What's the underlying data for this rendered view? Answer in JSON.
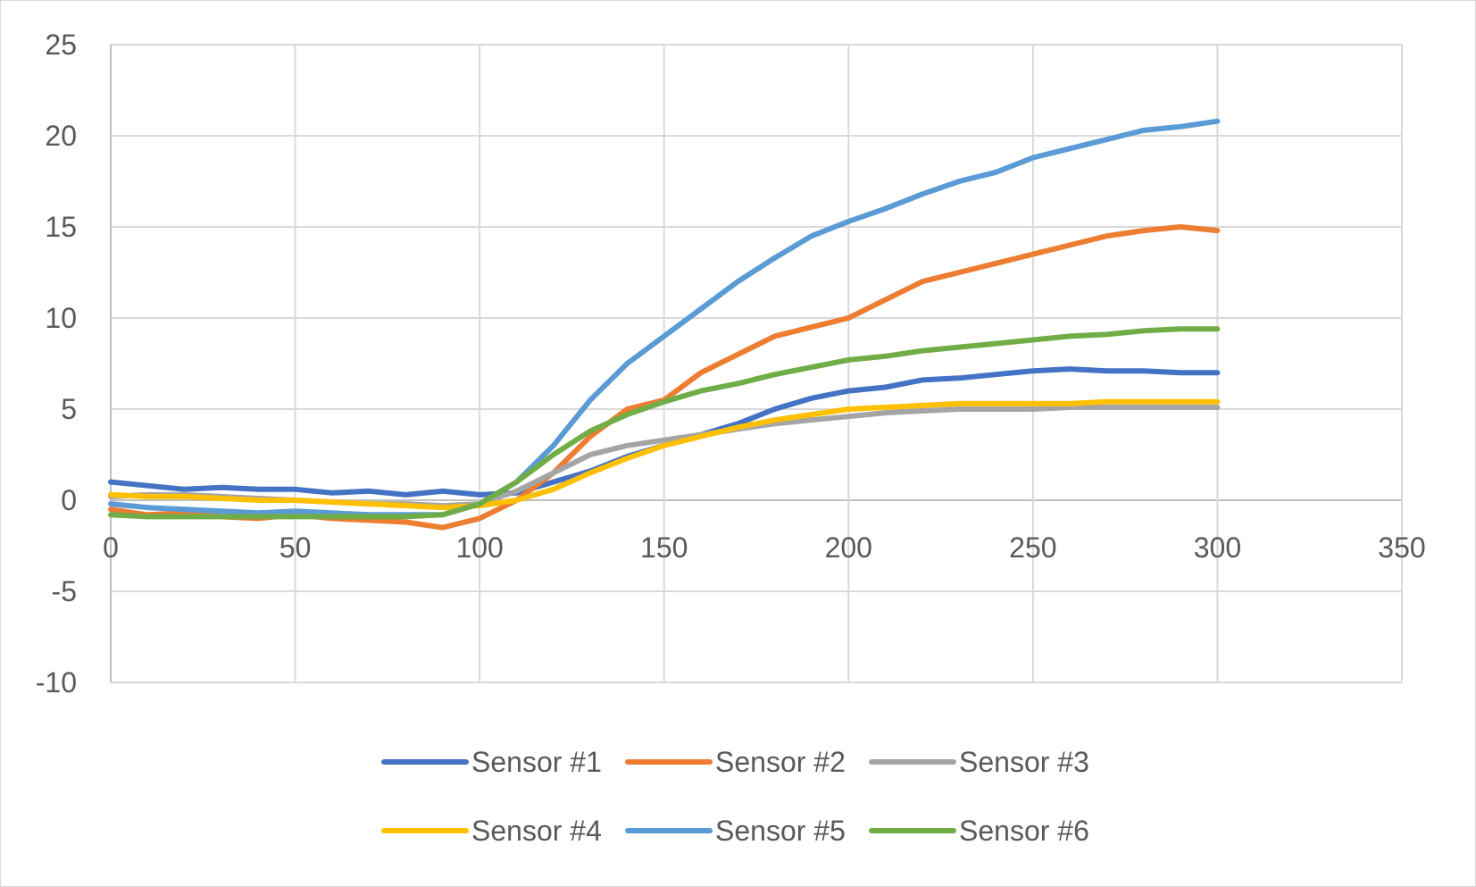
{
  "chart_data": {
    "type": "line",
    "title": "",
    "xlabel": "",
    "ylabel": "",
    "xlim": [
      0,
      350
    ],
    "ylim": [
      -10,
      25
    ],
    "x_ticks": [
      "0",
      "50",
      "100",
      "150",
      "200",
      "250",
      "300",
      "350"
    ],
    "y_ticks": [
      "25",
      "20",
      "15",
      "10",
      "5",
      "0",
      "-5",
      "-10"
    ],
    "grid": true,
    "legend_position": "bottom",
    "x": [
      0,
      10,
      20,
      30,
      40,
      50,
      60,
      70,
      80,
      90,
      100,
      110,
      120,
      130,
      140,
      150,
      160,
      170,
      180,
      190,
      200,
      210,
      220,
      230,
      240,
      250,
      260,
      270,
      280,
      290,
      300
    ],
    "series": [
      {
        "name": "Sensor #1",
        "color": "#4472c4",
        "values": [
          1.0,
          0.8,
          0.6,
          0.7,
          0.6,
          0.6,
          0.4,
          0.5,
          0.3,
          0.5,
          0.3,
          0.4,
          1.0,
          1.6,
          2.4,
          3.0,
          3.6,
          4.2,
          5.0,
          5.6,
          6.0,
          6.2,
          6.6,
          6.7,
          6.9,
          7.1,
          7.2,
          7.1,
          7.1,
          7.0,
          7.0
        ]
      },
      {
        "name": "Sensor #2",
        "color": "#ed7d31",
        "values": [
          -0.5,
          -0.8,
          -0.7,
          -0.9,
          -1.0,
          -0.8,
          -1.0,
          -1.1,
          -1.2,
          -1.5,
          -1.0,
          0.0,
          1.5,
          3.5,
          5.0,
          5.5,
          7.0,
          8.0,
          9.0,
          9.5,
          10.0,
          11.0,
          12.0,
          12.5,
          13.0,
          13.5,
          14.0,
          14.5,
          14.8,
          15.0,
          14.8
        ]
      },
      {
        "name": "Sensor #3",
        "color": "#a5a5a5",
        "values": [
          0.2,
          0.3,
          0.3,
          0.2,
          0.1,
          0.0,
          -0.1,
          -0.2,
          -0.2,
          -0.3,
          -0.2,
          0.5,
          1.5,
          2.5,
          3.0,
          3.3,
          3.6,
          3.9,
          4.2,
          4.4,
          4.6,
          4.8,
          4.9,
          5.0,
          5.0,
          5.0,
          5.1,
          5.1,
          5.1,
          5.1,
          5.1
        ]
      },
      {
        "name": "Sensor #4",
        "color": "#ffc000",
        "values": [
          0.3,
          0.2,
          0.2,
          0.1,
          0.0,
          0.0,
          -0.1,
          -0.2,
          -0.3,
          -0.4,
          -0.3,
          0.0,
          0.6,
          1.5,
          2.3,
          3.0,
          3.5,
          4.0,
          4.4,
          4.7,
          5.0,
          5.1,
          5.2,
          5.3,
          5.3,
          5.3,
          5.3,
          5.4,
          5.4,
          5.4,
          5.4
        ]
      },
      {
        "name": "Sensor #5",
        "color": "#5b9bd5",
        "values": [
          -0.2,
          -0.4,
          -0.5,
          -0.6,
          -0.7,
          -0.6,
          -0.7,
          -0.8,
          -0.8,
          -0.8,
          -0.2,
          1.0,
          3.0,
          5.5,
          7.5,
          9.0,
          10.5,
          12.0,
          13.3,
          14.5,
          15.3,
          16.0,
          16.8,
          17.5,
          18.0,
          18.8,
          19.3,
          19.8,
          20.3,
          20.5,
          20.8
        ]
      },
      {
        "name": "Sensor #6",
        "color": "#70ad47",
        "values": [
          -0.8,
          -0.9,
          -0.9,
          -0.9,
          -0.9,
          -0.9,
          -0.9,
          -0.9,
          -0.9,
          -0.8,
          -0.2,
          1.0,
          2.5,
          3.8,
          4.7,
          5.4,
          6.0,
          6.4,
          6.9,
          7.3,
          7.7,
          7.9,
          8.2,
          8.4,
          8.6,
          8.8,
          9.0,
          9.1,
          9.3,
          9.4,
          9.4
        ]
      }
    ]
  }
}
